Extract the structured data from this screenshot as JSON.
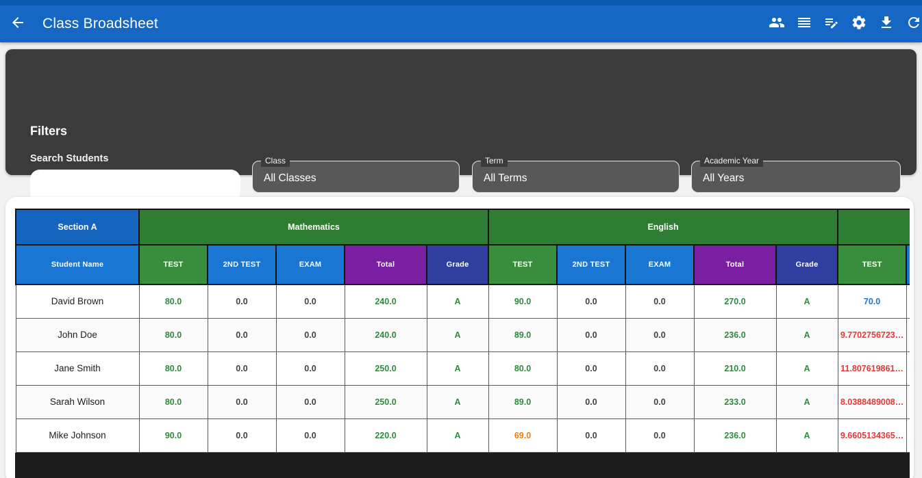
{
  "app_bar": {
    "title": "Class Broadsheet",
    "actions": [
      {
        "icon": "people-icon"
      },
      {
        "icon": "reorder-icon"
      },
      {
        "icon": "edit-note-icon"
      },
      {
        "icon": "settings-gear-icon"
      },
      {
        "icon": "download-icon"
      },
      {
        "icon": "refresh-icon"
      }
    ]
  },
  "filters": {
    "heading": "Filters",
    "search": {
      "label": "Search Students",
      "value": "",
      "placeholder": ""
    },
    "dropdowns": [
      {
        "label": "Class",
        "value": "All Classes"
      },
      {
        "label": "Term",
        "value": "All Terms"
      },
      {
        "label": "Academic Year",
        "value": "All Years"
      }
    ]
  },
  "broadsheet": {
    "section_header": "Section A",
    "student_column_header": "Student Name",
    "subjects": [
      {
        "name": "Mathematics",
        "columns": [
          {
            "label": "TEST",
            "type": "test"
          },
          {
            "label": "2ND TEST",
            "type": "exam"
          },
          {
            "label": "EXAM",
            "type": "exam"
          },
          {
            "label": "Total",
            "type": "total"
          },
          {
            "label": "Grade",
            "type": "grade"
          }
        ]
      },
      {
        "name": "English",
        "columns": [
          {
            "label": "TEST",
            "type": "test"
          },
          {
            "label": "2ND TEST",
            "type": "exam"
          },
          {
            "label": "EXAM",
            "type": "exam"
          },
          {
            "label": "Total",
            "type": "total"
          },
          {
            "label": "Grade",
            "type": "grade"
          }
        ]
      },
      {
        "name": "",
        "columns": [
          {
            "label": "TEST",
            "type": "test"
          },
          {
            "label": "",
            "type": "exam"
          }
        ]
      }
    ],
    "rows": [
      {
        "student": "David Brown",
        "cells": [
          [
            "80.0",
            "green"
          ],
          [
            "0.0",
            "gray"
          ],
          [
            "0.0",
            "gray"
          ],
          [
            "240.0",
            "green"
          ],
          [
            "A",
            "green"
          ],
          [
            "90.0",
            "green"
          ],
          [
            "0.0",
            "gray"
          ],
          [
            "0.0",
            "gray"
          ],
          [
            "270.0",
            "green"
          ],
          [
            "A",
            "green"
          ],
          [
            "70.0",
            "blue"
          ],
          [
            "",
            "gray"
          ]
        ]
      },
      {
        "student": "John Doe",
        "cells": [
          [
            "80.0",
            "green"
          ],
          [
            "0.0",
            "gray"
          ],
          [
            "0.0",
            "gray"
          ],
          [
            "240.0",
            "green"
          ],
          [
            "A",
            "green"
          ],
          [
            "89.0",
            "green"
          ],
          [
            "0.0",
            "gray"
          ],
          [
            "0.0",
            "gray"
          ],
          [
            "236.0",
            "green"
          ],
          [
            "A",
            "green"
          ],
          [
            "9.7702756723…",
            "red"
          ],
          [
            "",
            "gray"
          ]
        ]
      },
      {
        "student": "Jane Smith",
        "cells": [
          [
            "80.0",
            "green"
          ],
          [
            "0.0",
            "gray"
          ],
          [
            "0.0",
            "gray"
          ],
          [
            "250.0",
            "green"
          ],
          [
            "A",
            "green"
          ],
          [
            "80.0",
            "green"
          ],
          [
            "0.0",
            "gray"
          ],
          [
            "0.0",
            "gray"
          ],
          [
            "210.0",
            "green"
          ],
          [
            "A",
            "green"
          ],
          [
            "11.807619861…",
            "red"
          ],
          [
            "",
            "gray"
          ]
        ]
      },
      {
        "student": "Sarah Wilson",
        "cells": [
          [
            "80.0",
            "green"
          ],
          [
            "0.0",
            "gray"
          ],
          [
            "0.0",
            "gray"
          ],
          [
            "250.0",
            "green"
          ],
          [
            "A",
            "green"
          ],
          [
            "89.0",
            "green"
          ],
          [
            "0.0",
            "gray"
          ],
          [
            "0.0",
            "gray"
          ],
          [
            "233.0",
            "green"
          ],
          [
            "A",
            "green"
          ],
          [
            "8.0388489008…",
            "red"
          ],
          [
            "",
            "gray"
          ]
        ]
      },
      {
        "student": "Mike Johnson",
        "cells": [
          [
            "90.0",
            "green"
          ],
          [
            "0.0",
            "gray"
          ],
          [
            "0.0",
            "gray"
          ],
          [
            "220.0",
            "green"
          ],
          [
            "A",
            "green"
          ],
          [
            "69.0",
            "orange"
          ],
          [
            "0.0",
            "gray"
          ],
          [
            "0.0",
            "gray"
          ],
          [
            "236.0",
            "green"
          ],
          [
            "A",
            "green"
          ],
          [
            "9.6605134365…",
            "red"
          ],
          [
            "",
            "gray"
          ]
        ]
      }
    ]
  },
  "colors": {
    "app_bar": "#1667C4",
    "status_bar": "#0A5AAE",
    "page_bg": "#F1F1F1",
    "panel_bg": "#3B3B3B",
    "field_bg": "#585858",
    "section_blue": "#1565C0",
    "header_blue": "#1976D2",
    "subject_green": "#2E7D32",
    "test_green": "#388E3C",
    "total_purple": "#7B1FA2",
    "grade_indigo": "#303F9F",
    "table_dark": "#1C1C1C",
    "val_green": "#2E8B3C",
    "val_blue": "#1976D2",
    "val_red": "#E53935",
    "val_orange": "#F57C00"
  }
}
